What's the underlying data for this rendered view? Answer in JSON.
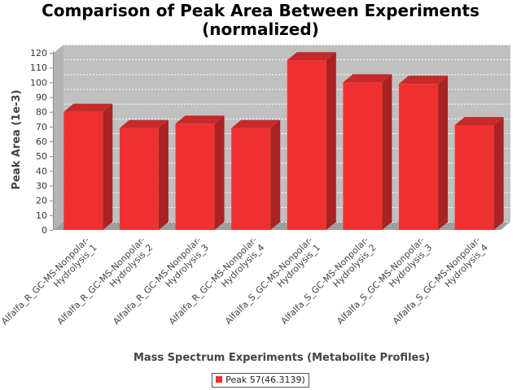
{
  "chart_data": {
    "type": "bar",
    "title": "Comparison of Peak Area Between Experiments",
    "subtitle": "(normalized)",
    "xlabel": "Mass Spectrum Experiments (Metabolite Profiles)",
    "ylabel": "Peak Area (1e-3)",
    "ylim": [
      0,
      120
    ],
    "yticks": [
      0,
      10,
      20,
      30,
      40,
      50,
      60,
      70,
      80,
      90,
      100,
      110,
      120
    ],
    "grid": true,
    "legend_position": "bottom",
    "categories": [
      [
        "Alfalfa_R_GC-MS-Nonpolar-",
        "Hydrolysis_1"
      ],
      [
        "Alfalfa_R_GC-MS-Nonpolar-",
        "Hydrolysis_2"
      ],
      [
        "Alfalfa_R_GC-MS-Nonpolar-",
        "Hydrolysis_3"
      ],
      [
        "Alfalfa_R_GC-MS-Nonpolar-",
        "Hydrolysis_4"
      ],
      [
        "Alfalfa_S_GC-MS-Nonpolar-",
        "Hydrolysis_1"
      ],
      [
        "Alfalfa_S_GC-MS-Nonpolar-",
        "Hydrolysis_2"
      ],
      [
        "Alfalfa_S_GC-MS-Nonpolar-",
        "Hydrolysis_3"
      ],
      [
        "Alfalfa_S_GC-MS-Nonpolar-",
        "Hydrolysis_4"
      ]
    ],
    "series": [
      {
        "name": "Peak 57(46.3139)",
        "color": "#f03030",
        "values": [
          80,
          69,
          72,
          69,
          115,
          100,
          99,
          71
        ]
      }
    ]
  }
}
